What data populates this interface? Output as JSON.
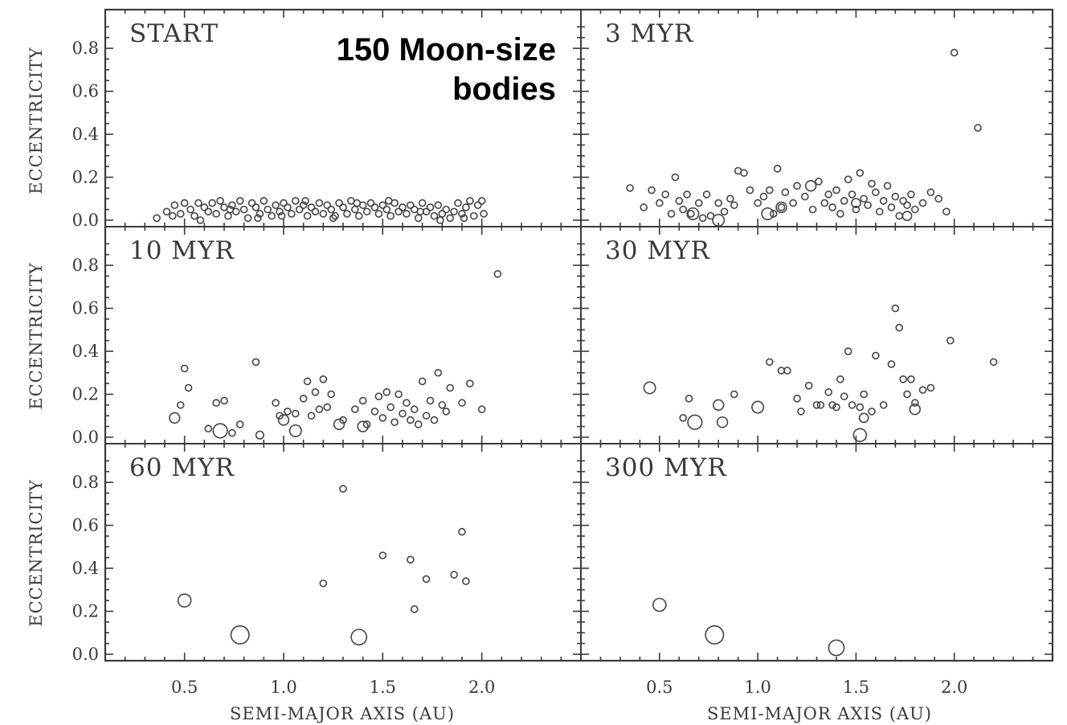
{
  "title_lines": [
    "150 Moon-size",
    "bodies"
  ],
  "colors": {
    "frame": "#3a3a3a",
    "marker": "#444444",
    "title": "#000000"
  },
  "axes": {
    "ylabel": "ECCENTRICITY",
    "xlabel": "SEMI-MAJOR AXIS (AU)",
    "y_ticks": [
      "0.0",
      "0.2",
      "0.4",
      "0.6",
      "0.8"
    ],
    "x_ticks": [
      "0.5",
      "1.0",
      "1.5",
      "2.0"
    ]
  },
  "chart_data": [
    {
      "type": "scatter",
      "panel": "START",
      "xlim": [
        0.1,
        2.5
      ],
      "ylim": [
        -0.03,
        0.98
      ],
      "points": [
        [
          0.36,
          0.01
        ],
        [
          0.41,
          0.04
        ],
        [
          0.45,
          0.07
        ],
        [
          0.48,
          0.03
        ],
        [
          0.5,
          0.08
        ],
        [
          0.53,
          0.05
        ],
        [
          0.55,
          0.02
        ],
        [
          0.57,
          0.08
        ],
        [
          0.6,
          0.06
        ],
        [
          0.62,
          0.04
        ],
        [
          0.64,
          0.08
        ],
        [
          0.66,
          0.03
        ],
        [
          0.68,
          0.09
        ],
        [
          0.7,
          0.06
        ],
        [
          0.72,
          0.02
        ],
        [
          0.74,
          0.07
        ],
        [
          0.76,
          0.04
        ],
        [
          0.78,
          0.09
        ],
        [
          0.8,
          0.05
        ],
        [
          0.82,
          0.01
        ],
        [
          0.84,
          0.08
        ],
        [
          0.86,
          0.06
        ],
        [
          0.88,
          0.03
        ],
        [
          0.9,
          0.09
        ],
        [
          0.92,
          0.05
        ],
        [
          0.94,
          0.02
        ],
        [
          0.96,
          0.07
        ],
        [
          0.98,
          0.04
        ],
        [
          1.0,
          0.08
        ],
        [
          1.02,
          0.06
        ],
        [
          1.04,
          0.03
        ],
        [
          1.06,
          0.09
        ],
        [
          1.08,
          0.05
        ],
        [
          1.1,
          0.07
        ],
        [
          1.12,
          0.02
        ],
        [
          1.14,
          0.06
        ],
        [
          1.16,
          0.04
        ],
        [
          1.18,
          0.08
        ],
        [
          1.2,
          0.03
        ],
        [
          1.22,
          0.07
        ],
        [
          1.24,
          0.05
        ],
        [
          1.26,
          0.02
        ],
        [
          1.28,
          0.08
        ],
        [
          1.3,
          0.06
        ],
        [
          1.32,
          0.03
        ],
        [
          1.34,
          0.09
        ],
        [
          1.36,
          0.05
        ],
        [
          1.38,
          0.02
        ],
        [
          1.4,
          0.07
        ],
        [
          1.42,
          0.04
        ],
        [
          1.44,
          0.08
        ],
        [
          1.46,
          0.06
        ],
        [
          1.48,
          0.03
        ],
        [
          1.5,
          0.07
        ],
        [
          1.52,
          0.05
        ],
        [
          1.54,
          0.02
        ],
        [
          1.56,
          0.08
        ],
        [
          1.58,
          0.04
        ],
        [
          1.6,
          0.06
        ],
        [
          1.62,
          0.03
        ],
        [
          1.64,
          0.07
        ],
        [
          1.66,
          0.05
        ],
        [
          1.68,
          0.01
        ],
        [
          1.7,
          0.08
        ],
        [
          1.72,
          0.04
        ],
        [
          1.74,
          0.06
        ],
        [
          1.76,
          0.02
        ],
        [
          1.78,
          0.07
        ],
        [
          1.8,
          0.03
        ],
        [
          1.82,
          0.05
        ],
        [
          1.84,
          0.01
        ],
        [
          1.86,
          0.04
        ],
        [
          1.88,
          0.08
        ],
        [
          1.9,
          0.03
        ],
        [
          1.92,
          0.06
        ],
        [
          1.94,
          0.09
        ],
        [
          1.96,
          0.02
        ],
        [
          1.98,
          0.07
        ],
        [
          2.0,
          0.09
        ],
        [
          2.01,
          0.03
        ],
        [
          0.44,
          0.02
        ],
        [
          0.58,
          0.0
        ],
        [
          0.73,
          0.05
        ],
        [
          0.87,
          0.01
        ],
        [
          0.99,
          0.02
        ],
        [
          1.11,
          0.09
        ],
        [
          1.25,
          0.01
        ],
        [
          1.37,
          0.08
        ],
        [
          1.53,
          0.09
        ],
        [
          1.69,
          0.04
        ],
        [
          1.79,
          0.0
        ],
        [
          1.91,
          0.01
        ]
      ],
      "sizes": []
    },
    {
      "type": "scatter",
      "panel": "3 MYR",
      "xlim": [
        0.1,
        2.5
      ],
      "ylim": [
        -0.03,
        0.98
      ],
      "points": [
        [
          0.35,
          0.15
        ],
        [
          0.42,
          0.06
        ],
        [
          0.46,
          0.14
        ],
        [
          0.5,
          0.08
        ],
        [
          0.53,
          0.12
        ],
        [
          0.56,
          0.03
        ],
        [
          0.58,
          0.2
        ],
        [
          0.6,
          0.09
        ],
        [
          0.62,
          0.05
        ],
        [
          0.64,
          0.12
        ],
        [
          0.66,
          0.03
        ],
        [
          0.7,
          0.08
        ],
        [
          0.72,
          0.01
        ],
        [
          0.74,
          0.12
        ],
        [
          0.76,
          0.02
        ],
        [
          0.8,
          0.08
        ],
        [
          0.83,
          0.04
        ],
        [
          0.86,
          0.1
        ],
        [
          0.88,
          0.07
        ],
        [
          0.9,
          0.23
        ],
        [
          0.93,
          0.22
        ],
        [
          0.96,
          0.14
        ],
        [
          1.0,
          0.08
        ],
        [
          1.03,
          0.11
        ],
        [
          1.06,
          0.14
        ],
        [
          1.08,
          0.03
        ],
        [
          1.1,
          0.24
        ],
        [
          1.12,
          0.06
        ],
        [
          1.14,
          0.13
        ],
        [
          1.18,
          0.08
        ],
        [
          1.2,
          0.16
        ],
        [
          1.24,
          0.11
        ],
        [
          1.28,
          0.05
        ],
        [
          1.31,
          0.18
        ],
        [
          1.34,
          0.08
        ],
        [
          1.36,
          0.12
        ],
        [
          1.38,
          0.06
        ],
        [
          1.4,
          0.14
        ],
        [
          1.42,
          0.03
        ],
        [
          1.44,
          0.09
        ],
        [
          1.46,
          0.19
        ],
        [
          1.48,
          0.12
        ],
        [
          1.5,
          0.05
        ],
        [
          1.52,
          0.22
        ],
        [
          1.54,
          0.1
        ],
        [
          1.56,
          0.07
        ],
        [
          1.58,
          0.17
        ],
        [
          1.6,
          0.13
        ],
        [
          1.62,
          0.04
        ],
        [
          1.64,
          0.09
        ],
        [
          1.66,
          0.16
        ],
        [
          1.68,
          0.06
        ],
        [
          1.7,
          0.11
        ],
        [
          1.72,
          0.02
        ],
        [
          1.74,
          0.09
        ],
        [
          1.76,
          0.07
        ],
        [
          1.78,
          0.12
        ],
        [
          1.8,
          0.05
        ],
        [
          1.84,
          0.08
        ],
        [
          1.88,
          0.13
        ],
        [
          1.92,
          0.1
        ],
        [
          1.96,
          0.04
        ],
        [
          2.0,
          0.78
        ],
        [
          2.12,
          0.43
        ]
      ],
      "sizes": [
        [
          0.67,
          0.03,
          1.8
        ],
        [
          0.8,
          0.0,
          1.8
        ],
        [
          1.05,
          0.03,
          1.8
        ],
        [
          1.12,
          0.06,
          1.6
        ],
        [
          1.27,
          0.16,
          1.6
        ],
        [
          1.5,
          0.08,
          1.4
        ],
        [
          1.76,
          0.02,
          1.4
        ]
      ]
    },
    {
      "type": "scatter",
      "panel": "10 MYR",
      "xlim": [
        0.1,
        2.5
      ],
      "ylim": [
        -0.03,
        0.98
      ],
      "points": [
        [
          0.48,
          0.15
        ],
        [
          0.5,
          0.32
        ],
        [
          0.52,
          0.23
        ],
        [
          0.62,
          0.04
        ],
        [
          0.66,
          0.16
        ],
        [
          0.7,
          0.17
        ],
        [
          0.74,
          0.02
        ],
        [
          0.78,
          0.06
        ],
        [
          0.86,
          0.35
        ],
        [
          0.96,
          0.16
        ],
        [
          0.98,
          0.1
        ],
        [
          1.02,
          0.12
        ],
        [
          1.06,
          0.11
        ],
        [
          1.1,
          0.18
        ],
        [
          1.12,
          0.26
        ],
        [
          1.14,
          0.1
        ],
        [
          1.16,
          0.21
        ],
        [
          1.18,
          0.13
        ],
        [
          1.2,
          0.27
        ],
        [
          1.22,
          0.14
        ],
        [
          1.24,
          0.2
        ],
        [
          1.3,
          0.08
        ],
        [
          1.36,
          0.13
        ],
        [
          1.4,
          0.17
        ],
        [
          1.42,
          0.06
        ],
        [
          1.46,
          0.12
        ],
        [
          1.48,
          0.19
        ],
        [
          1.5,
          0.09
        ],
        [
          1.52,
          0.21
        ],
        [
          1.54,
          0.14
        ],
        [
          1.56,
          0.07
        ],
        [
          1.58,
          0.2
        ],
        [
          1.6,
          0.11
        ],
        [
          1.62,
          0.16
        ],
        [
          1.64,
          0.08
        ],
        [
          1.66,
          0.13
        ],
        [
          1.68,
          0.06
        ],
        [
          1.7,
          0.26
        ],
        [
          1.72,
          0.1
        ],
        [
          1.74,
          0.17
        ],
        [
          1.76,
          0.08
        ],
        [
          1.78,
          0.3
        ],
        [
          1.8,
          0.15
        ],
        [
          1.82,
          0.12
        ],
        [
          1.84,
          0.23
        ],
        [
          1.9,
          0.16
        ],
        [
          1.94,
          0.25
        ],
        [
          2.0,
          0.13
        ],
        [
          2.08,
          0.76
        ]
      ],
      "sizes": [
        [
          0.45,
          0.09,
          1.6
        ],
        [
          0.68,
          0.03,
          2.2
        ],
        [
          0.88,
          0.01,
          1.2
        ],
        [
          1.0,
          0.08,
          1.6
        ],
        [
          1.06,
          0.03,
          1.8
        ],
        [
          1.28,
          0.06,
          1.6
        ],
        [
          1.4,
          0.05,
          1.6
        ]
      ]
    },
    {
      "type": "scatter",
      "panel": "30 MYR",
      "xlim": [
        0.1,
        2.5
      ],
      "ylim": [
        -0.03,
        0.98
      ],
      "points": [
        [
          0.62,
          0.09
        ],
        [
          0.65,
          0.18
        ],
        [
          0.88,
          0.2
        ],
        [
          1.06,
          0.35
        ],
        [
          1.12,
          0.31
        ],
        [
          1.15,
          0.31
        ],
        [
          1.2,
          0.18
        ],
        [
          1.22,
          0.12
        ],
        [
          1.26,
          0.24
        ],
        [
          1.3,
          0.15
        ],
        [
          1.32,
          0.15
        ],
        [
          1.36,
          0.21
        ],
        [
          1.38,
          0.15
        ],
        [
          1.4,
          0.14
        ],
        [
          1.42,
          0.27
        ],
        [
          1.44,
          0.19
        ],
        [
          1.46,
          0.4
        ],
        [
          1.48,
          0.15
        ],
        [
          1.52,
          0.14
        ],
        [
          1.54,
          0.2
        ],
        [
          1.58,
          0.12
        ],
        [
          1.6,
          0.38
        ],
        [
          1.64,
          0.15
        ],
        [
          1.68,
          0.34
        ],
        [
          1.7,
          0.6
        ],
        [
          1.72,
          0.51
        ],
        [
          1.74,
          0.27
        ],
        [
          1.76,
          0.2
        ],
        [
          1.78,
          0.27
        ],
        [
          1.8,
          0.16
        ],
        [
          1.84,
          0.22
        ],
        [
          1.88,
          0.23
        ],
        [
          1.98,
          0.45
        ],
        [
          2.2,
          0.35
        ]
      ],
      "sizes": [
        [
          0.45,
          0.23,
          1.8
        ],
        [
          0.68,
          0.07,
          2.2
        ],
        [
          0.8,
          0.15,
          1.6
        ],
        [
          0.82,
          0.07,
          1.6
        ],
        [
          1.0,
          0.14,
          1.8
        ],
        [
          1.52,
          0.01,
          2.0
        ],
        [
          1.54,
          0.09,
          1.4
        ],
        [
          1.8,
          0.13,
          1.6
        ]
      ]
    },
    {
      "type": "scatter",
      "panel": "60 MYR",
      "xlim": [
        0.1,
        2.5
      ],
      "ylim": [
        -0.03,
        0.98
      ],
      "points": [
        [
          1.2,
          0.33
        ],
        [
          1.3,
          0.77
        ],
        [
          1.5,
          0.46
        ],
        [
          1.64,
          0.44
        ],
        [
          1.66,
          0.21
        ],
        [
          1.72,
          0.35
        ],
        [
          1.86,
          0.37
        ],
        [
          1.9,
          0.57
        ],
        [
          1.92,
          0.34
        ]
      ],
      "sizes": [
        [
          0.5,
          0.25,
          2.0
        ],
        [
          0.78,
          0.09,
          2.8
        ],
        [
          1.38,
          0.08,
          2.4
        ]
      ]
    },
    {
      "type": "scatter",
      "panel": "300 MYR",
      "xlim": [
        0.1,
        2.5
      ],
      "ylim": [
        -0.03,
        0.98
      ],
      "points": [],
      "sizes": [
        [
          0.5,
          0.23,
          2.0
        ],
        [
          0.78,
          0.09,
          2.8
        ],
        [
          1.4,
          0.03,
          2.4
        ]
      ]
    }
  ]
}
